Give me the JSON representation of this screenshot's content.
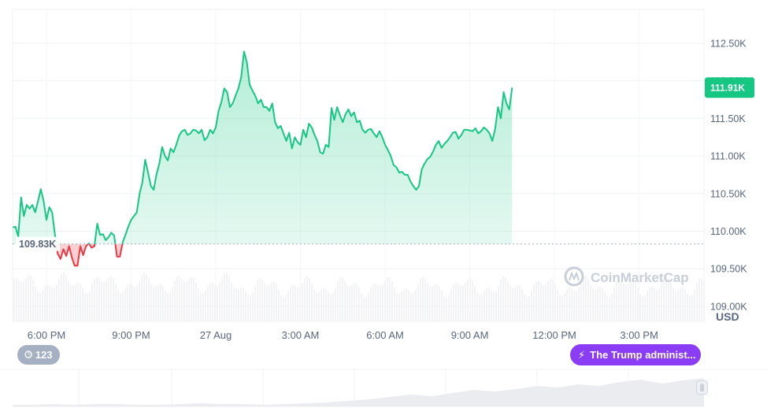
{
  "chart_data": {
    "type": "area",
    "unit": "USD",
    "y_ticks": [
      "112.50K",
      "112.00K",
      "111.50K",
      "111.00K",
      "110.50K",
      "110.00K",
      "109.50K",
      "109.00K"
    ],
    "y_tick_values": [
      112500,
      112000,
      111500,
      111000,
      110500,
      110000,
      109500,
      109000
    ],
    "ylim": [
      108800,
      112950
    ],
    "x_ticks": [
      "6:00 PM",
      "9:00 PM",
      "27 Aug",
      "3:00 AM",
      "6:00 AM",
      "9:00 AM",
      "12:00 PM",
      "3:00 PM"
    ],
    "x_tick_hours": [
      0,
      3,
      6,
      9,
      12,
      15,
      18,
      21
    ],
    "x_range_hours": [
      -1.2,
      23.3
    ],
    "reference_price": 109830,
    "reference_label": "109.83K",
    "current_price": 111910,
    "current_label": "111.91K",
    "colors": {
      "up": "#16c784",
      "down": "#ea3943",
      "badge": "#16c784"
    },
    "series": [
      {
        "values": [
          [
            -1.2,
            110050
          ],
          [
            -1.1,
            110060
          ],
          [
            -1.0,
            109930
          ],
          [
            -0.9,
            110450
          ],
          [
            -0.8,
            110200
          ],
          [
            -0.7,
            110350
          ],
          [
            -0.6,
            110300
          ],
          [
            -0.5,
            110350
          ],
          [
            -0.4,
            110250
          ],
          [
            -0.3,
            110400
          ],
          [
            -0.2,
            110560
          ],
          [
            -0.1,
            110400
          ],
          [
            0.0,
            110150
          ],
          [
            0.1,
            110320
          ],
          [
            0.2,
            110250
          ],
          [
            0.3,
            109950
          ],
          [
            0.4,
            109700
          ],
          [
            0.5,
            109630
          ],
          [
            0.6,
            109760
          ],
          [
            0.7,
            109670
          ],
          [
            0.8,
            109800
          ],
          [
            0.9,
            109650
          ],
          [
            1.0,
            109540
          ],
          [
            1.1,
            109540
          ],
          [
            1.2,
            109800
          ],
          [
            1.3,
            109680
          ],
          [
            1.4,
            109800
          ],
          [
            1.5,
            109840
          ],
          [
            1.6,
            109780
          ],
          [
            1.7,
            109800
          ],
          [
            1.8,
            110100
          ],
          [
            1.9,
            109950
          ],
          [
            2.0,
            109960
          ],
          [
            2.1,
            109880
          ],
          [
            2.2,
            109920
          ],
          [
            2.3,
            109980
          ],
          [
            2.4,
            109940
          ],
          [
            2.5,
            109660
          ],
          [
            2.6,
            109660
          ],
          [
            2.7,
            109850
          ],
          [
            2.8,
            109950
          ],
          [
            2.9,
            110060
          ],
          [
            3.0,
            110150
          ],
          [
            3.1,
            110200
          ],
          [
            3.2,
            110250
          ],
          [
            3.3,
            110500
          ],
          [
            3.4,
            110650
          ],
          [
            3.5,
            110950
          ],
          [
            3.6,
            110780
          ],
          [
            3.7,
            110600
          ],
          [
            3.8,
            110550
          ],
          [
            3.9,
            110760
          ],
          [
            4.0,
            110900
          ],
          [
            4.1,
            111120
          ],
          [
            4.2,
            111000
          ],
          [
            4.3,
            110940
          ],
          [
            4.4,
            111100
          ],
          [
            4.5,
            111050
          ],
          [
            4.6,
            111150
          ],
          [
            4.7,
            111270
          ],
          [
            4.8,
            111330
          ],
          [
            4.9,
            111350
          ],
          [
            5.0,
            111280
          ],
          [
            5.1,
            111300
          ],
          [
            5.2,
            111350
          ],
          [
            5.3,
            111340
          ],
          [
            5.4,
            111300
          ],
          [
            5.5,
            111350
          ],
          [
            5.6,
            111210
          ],
          [
            5.7,
            111250
          ],
          [
            5.8,
            111350
          ],
          [
            5.9,
            111300
          ],
          [
            6.0,
            111380
          ],
          [
            6.1,
            111600
          ],
          [
            6.2,
            111720
          ],
          [
            6.3,
            111900
          ],
          [
            6.4,
            111850
          ],
          [
            6.5,
            111650
          ],
          [
            6.6,
            111700
          ],
          [
            6.7,
            111800
          ],
          [
            6.8,
            111900
          ],
          [
            6.9,
            112050
          ],
          [
            7.0,
            112390
          ],
          [
            7.1,
            112250
          ],
          [
            7.2,
            111950
          ],
          [
            7.3,
            111870
          ],
          [
            7.4,
            111800
          ],
          [
            7.5,
            111700
          ],
          [
            7.6,
            111750
          ],
          [
            7.7,
            111650
          ],
          [
            7.8,
            111650
          ],
          [
            7.9,
            111600
          ],
          [
            8.0,
            111700
          ],
          [
            8.1,
            111450
          ],
          [
            8.2,
            111370
          ],
          [
            8.3,
            111400
          ],
          [
            8.4,
            111300
          ],
          [
            8.5,
            111200
          ],
          [
            8.6,
            111310
          ],
          [
            8.7,
            111100
          ],
          [
            8.8,
            111250
          ],
          [
            8.9,
            111180
          ],
          [
            9.0,
            111150
          ],
          [
            9.1,
            111350
          ],
          [
            9.2,
            111250
          ],
          [
            9.3,
            111430
          ],
          [
            9.4,
            111380
          ],
          [
            9.5,
            111280
          ],
          [
            9.6,
            111200
          ],
          [
            9.7,
            111050
          ],
          [
            9.8,
            111030
          ],
          [
            9.9,
            111150
          ],
          [
            10.0,
            111120
          ],
          [
            10.1,
            111640
          ],
          [
            10.2,
            111480
          ],
          [
            10.3,
            111650
          ],
          [
            10.4,
            111540
          ],
          [
            10.5,
            111450
          ],
          [
            10.6,
            111560
          ],
          [
            10.7,
            111620
          ],
          [
            10.8,
            111530
          ],
          [
            10.9,
            111580
          ],
          [
            11.0,
            111450
          ],
          [
            11.1,
            111470
          ],
          [
            11.2,
            111350
          ],
          [
            11.3,
            111310
          ],
          [
            11.4,
            111350
          ],
          [
            11.5,
            111360
          ],
          [
            11.6,
            111300
          ],
          [
            11.7,
            111250
          ],
          [
            11.8,
            111330
          ],
          [
            11.9,
            111250
          ],
          [
            12.0,
            111150
          ],
          [
            12.1,
            111080
          ],
          [
            12.2,
            111000
          ],
          [
            12.3,
            110880
          ],
          [
            12.4,
            110850
          ],
          [
            12.5,
            110780
          ],
          [
            12.6,
            110790
          ],
          [
            12.7,
            110750
          ],
          [
            12.8,
            110750
          ],
          [
            12.9,
            110660
          ],
          [
            13.0,
            110600
          ],
          [
            13.1,
            110550
          ],
          [
            13.2,
            110600
          ],
          [
            13.3,
            110820
          ],
          [
            13.4,
            110900
          ],
          [
            13.5,
            110960
          ],
          [
            13.6,
            110990
          ],
          [
            13.7,
            111060
          ],
          [
            13.8,
            111150
          ],
          [
            13.9,
            111200
          ],
          [
            14.0,
            111110
          ],
          [
            14.1,
            111160
          ],
          [
            14.2,
            111200
          ],
          [
            14.3,
            111250
          ],
          [
            14.4,
            111310
          ],
          [
            14.5,
            111320
          ],
          [
            14.6,
            111230
          ],
          [
            14.7,
            111280
          ],
          [
            14.8,
            111350
          ],
          [
            14.9,
            111350
          ],
          [
            15.0,
            111340
          ],
          [
            15.1,
            111330
          ],
          [
            15.2,
            111370
          ],
          [
            15.3,
            111300
          ],
          [
            15.4,
            111330
          ],
          [
            15.5,
            111380
          ],
          [
            15.6,
            111350
          ],
          [
            15.7,
            111300
          ],
          [
            15.8,
            111200
          ],
          [
            15.9,
            111360
          ],
          [
            16.0,
            111650
          ],
          [
            16.1,
            111500
          ],
          [
            16.2,
            111850
          ],
          [
            16.3,
            111700
          ],
          [
            16.4,
            111620
          ],
          [
            16.5,
            111910
          ]
        ]
      }
    ]
  },
  "overlays": {
    "watermark": "CoinMarketCap",
    "news_label": "The Trump administ...",
    "event_count": "123"
  },
  "navigator": {
    "volume_profile": [
      2,
      2,
      3,
      2,
      3,
      3,
      2,
      2,
      3,
      4,
      3,
      3,
      2,
      3,
      4,
      5,
      7,
      9,
      12,
      15,
      13,
      17,
      21,
      19,
      22,
      26,
      24,
      28,
      26,
      31,
      34,
      29,
      33,
      36
    ]
  }
}
